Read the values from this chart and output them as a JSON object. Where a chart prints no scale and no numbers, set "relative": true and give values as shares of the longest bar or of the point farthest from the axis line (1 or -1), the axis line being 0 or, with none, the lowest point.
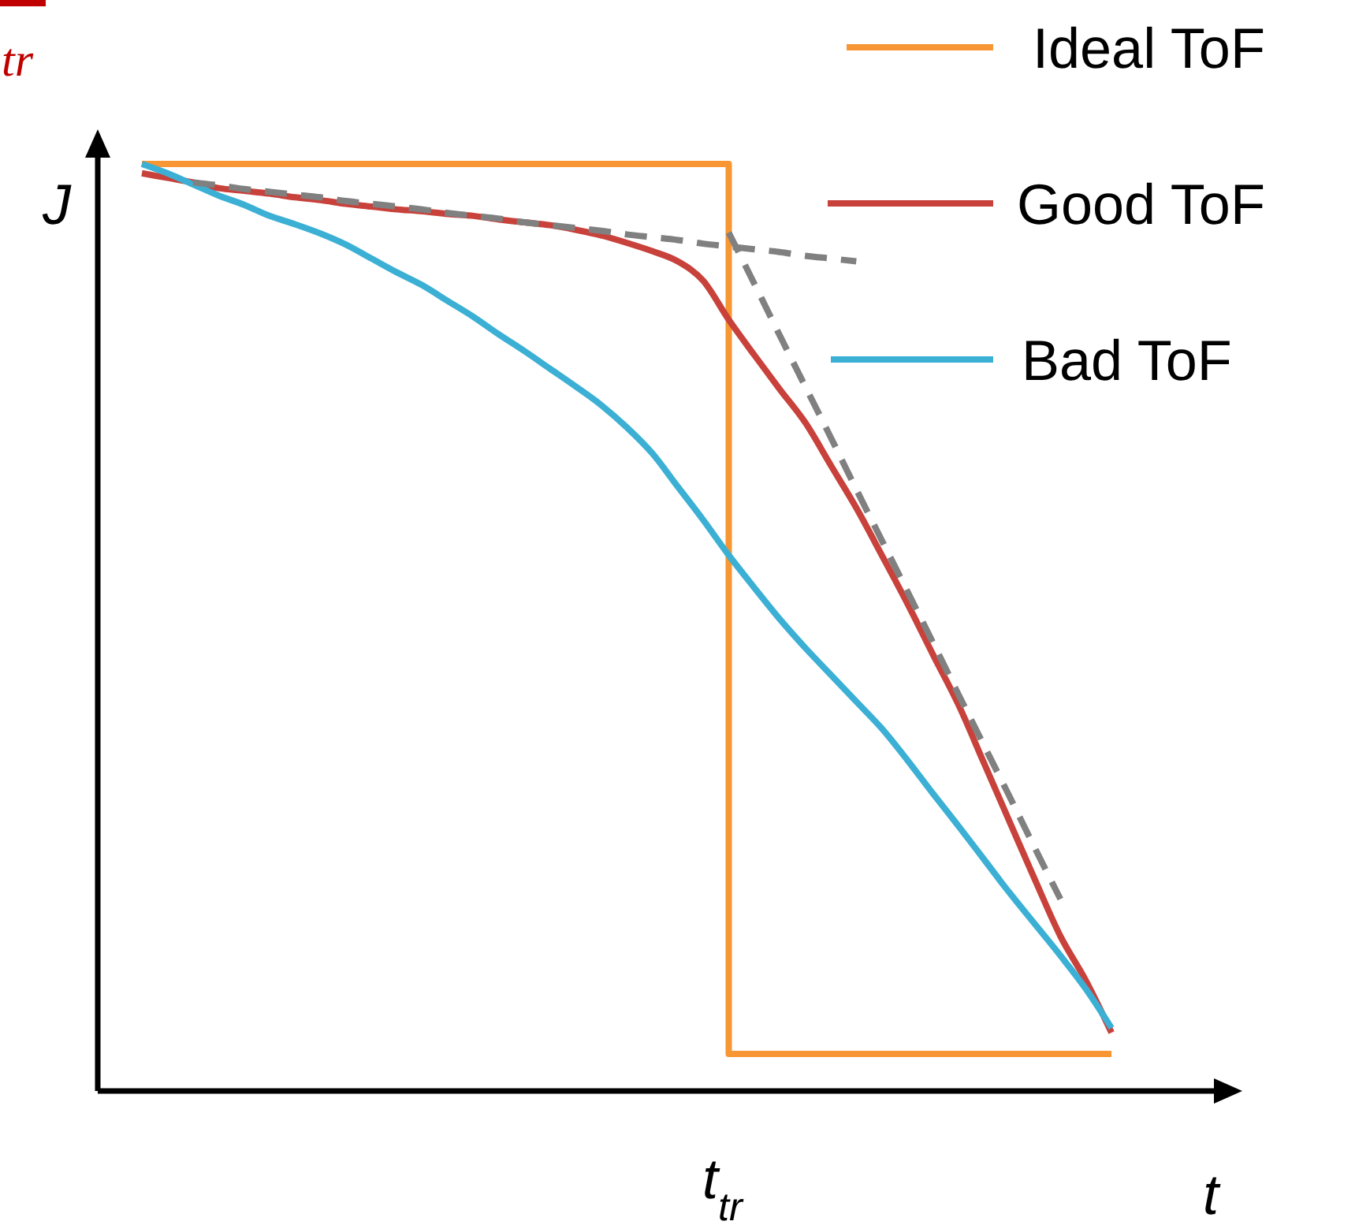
{
  "chart_data": {
    "type": "line",
    "relative": true,
    "xlabel": "t",
    "ylabel": "J",
    "legend": "top right",
    "annotations": [
      "t$_{tr}$",
      "tr"
    ],
    "categories": [
      null,
      null,
      null,
      null,
      null,
      null,
      null,
      null,
      null,
      null,
      null,
      null,
      null,
      null,
      null,
      null,
      null,
      null,
      null,
      null,
      null,
      null,
      null,
      null,
      null,
      null,
      null,
      null,
      null,
      null,
      null,
      null,
      null,
      null,
      null,
      null,
      null,
      null,
      null
    ],
    "series": [
      {
        "name": "Ideal ToF",
        "type": "step",
        "color": "#f79633",
        "values": [
          1,
          1,
          1,
          1,
          1,
          1,
          1,
          1,
          1,
          1,
          1,
          1,
          1,
          1,
          1,
          1,
          1,
          1,
          1,
          1,
          1,
          1,
          1,
          0.04,
          0.04,
          0.04,
          0.04,
          0.04,
          0.04,
          0.04,
          0.04,
          0.04,
          0.04,
          0.04,
          0.04,
          0.04,
          0.04,
          0.04,
          0.04
        ]
      },
      {
        "name": "Good ToF",
        "color": "#c8413b",
        "values": [
          0.99,
          0.985,
          0.98,
          0.974,
          0.971,
          0.968,
          0.964,
          0.961,
          0.957,
          0.954,
          0.951,
          0.949,
          0.946,
          0.944,
          0.94,
          0.937,
          0.934,
          0.929,
          0.923,
          0.915,
          0.906,
          0.895,
          0.874,
          0.832,
          0.794,
          0.757,
          0.721,
          0.675,
          0.629,
          0.578,
          0.526,
          0.471,
          0.417,
          0.354,
          0.291,
          0.228,
          0.167,
          0.119,
          0.063
        ]
      },
      {
        "name": "Bad ToF",
        "color": "#3bb0d4",
        "values": [
          1,
          0.99,
          0.978,
          0.966,
          0.956,
          0.944,
          0.935,
          0.925,
          0.913,
          0.898,
          0.883,
          0.869,
          0.852,
          0.835,
          0.816,
          0.798,
          0.779,
          0.76,
          0.74,
          0.716,
          0.688,
          0.652,
          0.616,
          0.578,
          0.543,
          0.509,
          0.478,
          0.449,
          0.42,
          0.391,
          0.357,
          0.321,
          0.286,
          0.25,
          0.214,
          0.18,
          0.146,
          0.11,
          0.068
        ]
      },
      {
        "color": "#808080",
        "line_style": "dashed",
        "values": [
          null,
          null,
          0.98,
          0.977,
          0.973,
          0.97,
          0.967,
          0.964,
          0.96,
          0.957,
          0.954,
          0.951,
          0.947,
          0.944,
          0.941,
          0.937,
          0.934,
          0.931,
          0.928,
          0.924,
          0.921,
          0.918,
          0.914,
          0.911,
          0.908,
          0.905,
          0.901,
          0.898,
          0.895,
          null,
          null,
          null,
          null,
          null,
          null,
          null,
          null,
          null,
          null
        ]
      },
      {
        "color": "#808080",
        "line_style": "dashed",
        "values": [
          null,
          null,
          null,
          null,
          null,
          null,
          null,
          null,
          null,
          null,
          null,
          null,
          null,
          null,
          null,
          null,
          null,
          null,
          null,
          null,
          null,
          null,
          null,
          0.926,
          0.871,
          0.815,
          0.76,
          0.705,
          0.649,
          0.594,
          0.539,
          0.484,
          0.428,
          0.373,
          0.318,
          0.262,
          0.207,
          null,
          null
        ]
      }
    ]
  }
}
